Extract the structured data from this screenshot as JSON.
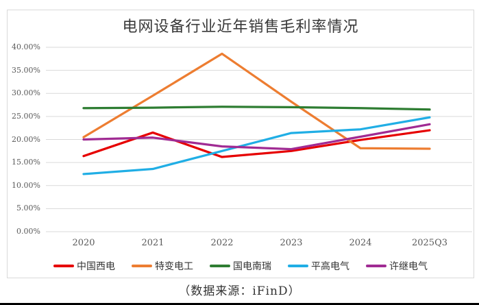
{
  "page": {
    "source_note": "（数据来源：iFinD）"
  },
  "chart_data": {
    "type": "line",
    "title": "电网设备行业近年销售毛利率情况",
    "xlabel": "",
    "ylabel": "",
    "unit": "%",
    "ylim": [
      0,
      40
    ],
    "y_tick_step": 5,
    "grid": true,
    "grid_color": "#d9d9d9",
    "legend_position": "bottom",
    "y_ticks": [
      "0.00%",
      "5.00%",
      "10.00%",
      "15.00%",
      "20.00%",
      "25.00%",
      "30.00%",
      "35.00%",
      "40.00%"
    ],
    "categories": [
      "2020",
      "2021",
      "2022",
      "2023",
      "2024",
      "2025Q3"
    ],
    "series": [
      {
        "name": "中国西电",
        "color": "#e60000",
        "values": [
          16.4,
          21.5,
          16.2,
          17.5,
          19.9,
          22.0
        ]
      },
      {
        "name": "特变电工",
        "color": "#ed7d31",
        "values": [
          20.5,
          29.5,
          38.6,
          28.2,
          18.1,
          18.0
        ]
      },
      {
        "name": "国电南瑞",
        "color": "#2e7d32",
        "values": [
          26.8,
          26.9,
          27.1,
          27.0,
          26.8,
          26.5
        ]
      },
      {
        "name": "平高电气",
        "color": "#20aee5",
        "values": [
          12.5,
          13.6,
          17.5,
          21.4,
          22.2,
          24.8
        ]
      },
      {
        "name": "许继电气",
        "color": "#a02b93",
        "values": [
          20.0,
          20.4,
          18.5,
          17.9,
          20.6,
          23.3
        ]
      }
    ]
  }
}
